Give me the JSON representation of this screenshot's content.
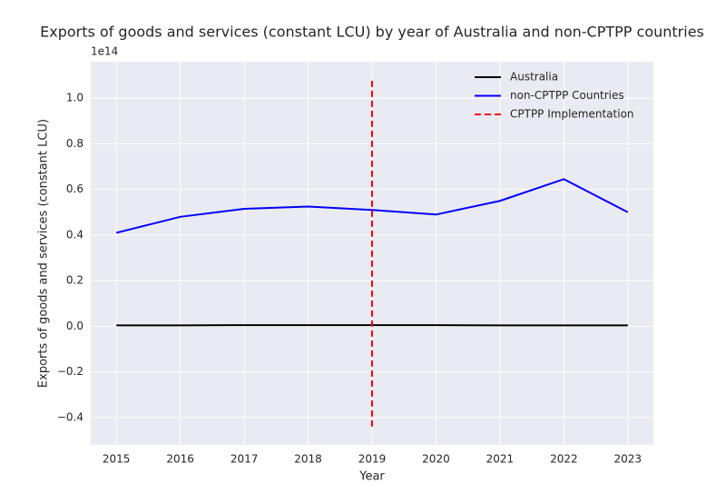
{
  "chart_data": {
    "type": "line",
    "title": "Exports of goods and services (constant LCU) by year of Australia and non-CPTPP countries",
    "xlabel": "Year",
    "ylabel": "Exports of goods and services (constant LCU)",
    "y_offset_label": "1e14",
    "x": [
      2015,
      2016,
      2017,
      2018,
      2019,
      2020,
      2021,
      2022,
      2023
    ],
    "series": [
      {
        "name": "Australia",
        "color": "#000000",
        "values": [
          0.004,
          0.004,
          0.005,
          0.005,
          0.005,
          0.005,
          0.004,
          0.004,
          0.004
        ]
      },
      {
        "name": "non-CPTPP Countries",
        "color": "#0000ff",
        "values": [
          0.41,
          0.48,
          0.515,
          0.525,
          0.51,
          0.49,
          0.55,
          0.645,
          0.5
        ]
      }
    ],
    "vlines": [
      {
        "name": "CPTPP Implementation",
        "color": "#ff0000",
        "x": 2019,
        "y": [
          -0.44,
          1.08
        ]
      }
    ],
    "xlim": [
      2014.6,
      2023.4
    ],
    "ylim": [
      -0.52,
      1.16
    ],
    "xticks": [
      2015,
      2016,
      2017,
      2018,
      2019,
      2020,
      2021,
      2022,
      2023
    ],
    "yticks": [
      {
        "value": -0.4,
        "label": "−0.4"
      },
      {
        "value": -0.2,
        "label": "−0.2"
      },
      {
        "value": 0,
        "label": "0.0"
      },
      0.2,
      0.4,
      0.6,
      0.8,
      {
        "value": 1,
        "label": "1.0"
      }
    ],
    "grid": true,
    "legend": "upper right"
  }
}
